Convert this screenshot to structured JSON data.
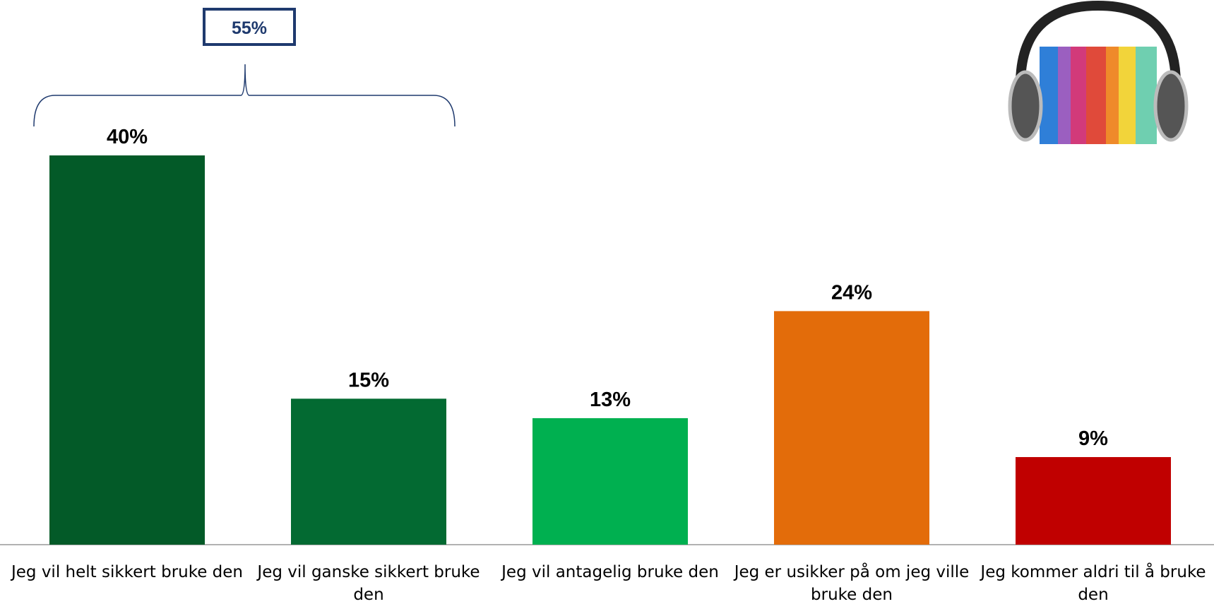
{
  "chart_data": {
    "type": "bar",
    "categories": [
      "Jeg vil helt sikkert bruke den",
      "Jeg vil ganske sikkert bruke den",
      "Jeg vil antagelig bruke den",
      "Jeg er usikker på om jeg ville bruke den",
      "Jeg kommer aldri til å bruke den"
    ],
    "values": [
      40,
      15,
      13,
      24,
      9
    ],
    "value_labels": [
      "40%",
      "15%",
      "13%",
      "24%",
      "9%"
    ],
    "colors": [
      "#035a28",
      "#036a32",
      "#00b050",
      "#e36c0a",
      "#c00000"
    ],
    "bracket": {
      "value": 55,
      "label": "55%"
    }
  }
}
